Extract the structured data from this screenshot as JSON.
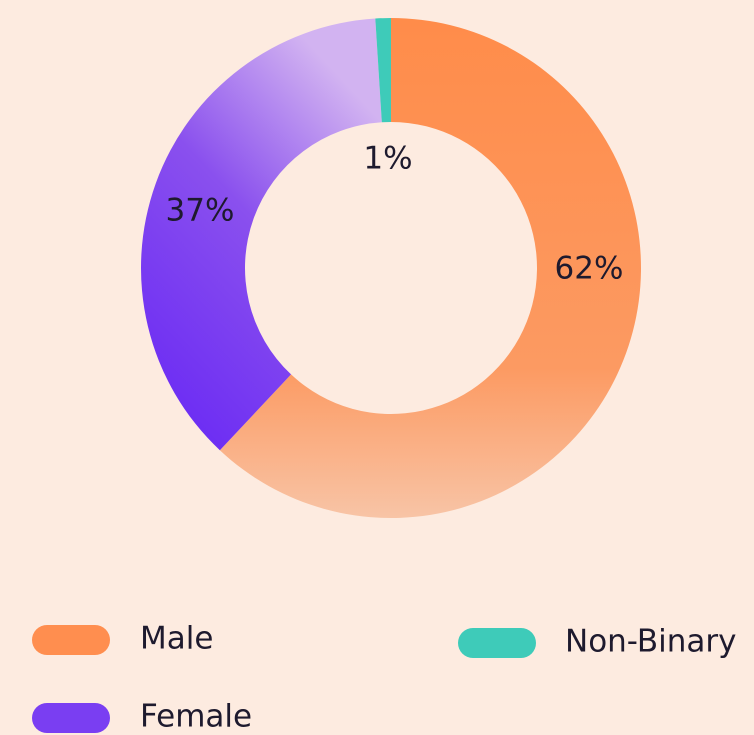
{
  "chart_data": {
    "type": "donut",
    "categories": [
      "Male",
      "Female",
      "Non-Binary"
    ],
    "values": [
      62,
      37,
      1
    ],
    "value_labels": [
      "62%",
      "37%",
      "1%"
    ],
    "colors": [
      "#ff8e4f",
      "#7a3ef2",
      "#3ecbb9"
    ]
  }
}
